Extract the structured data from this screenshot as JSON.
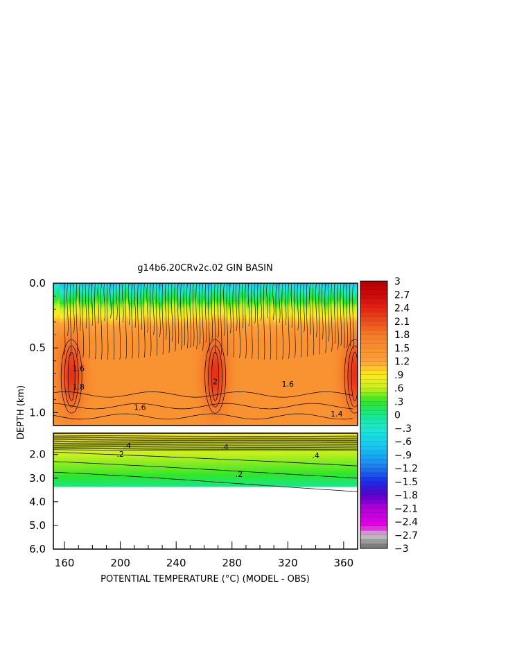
{
  "chart_data": {
    "type": "heatmap",
    "title": "g14b6.20CRv2c.02 GIN BASIN",
    "xlabel": "POTENTIAL TEMPERATURE (°C) (MODEL - OBS)",
    "ylabel": "DEPTH (km)",
    "xlim": [
      152,
      370
    ],
    "x_ticks": [
      "160",
      "200",
      "240",
      "280",
      "320",
      "360"
    ],
    "upper_panel": {
      "ylim": [
        0.0,
        1.1
      ],
      "y_ticks": [
        "0.0",
        "0.5",
        "1.0"
      ]
    },
    "lower_panel": {
      "ylim": [
        1.1,
        6.0
      ],
      "y_ticks": [
        "2.0",
        "3.0",
        "4.0",
        "5.0",
        "6.0"
      ],
      "data_bottom_depth": 3.35
    },
    "colorbar": {
      "min": -3,
      "max": 3,
      "labels": [
        "3",
        "2.7",
        "2.4",
        "2.1",
        "1.8",
        "1.5",
        "1.2",
        ".9",
        ".6",
        ".3",
        "0",
        "-.3",
        "-.6",
        "-.9",
        "-1.2",
        "-1.5",
        "-1.8",
        "-2.1",
        "-2.4",
        "-2.7",
        "-3"
      ],
      "stops": [
        {
          "v": -3.0,
          "c": "#6e6e6e"
        },
        {
          "v": -2.7,
          "c": "#c8c8c8"
        },
        {
          "v": -2.5,
          "c": "#e600e6"
        },
        {
          "v": -2.1,
          "c": "#b000d8"
        },
        {
          "v": -1.8,
          "c": "#5a00c8"
        },
        {
          "v": -1.5,
          "c": "#1a2ee6"
        },
        {
          "v": -1.1,
          "c": "#1e8cf0"
        },
        {
          "v": -0.7,
          "c": "#16c8f0"
        },
        {
          "v": -0.3,
          "c": "#1ee8d2"
        },
        {
          "v": 0.0,
          "c": "#19e68c"
        },
        {
          "v": 0.3,
          "c": "#2ee628"
        },
        {
          "v": 0.6,
          "c": "#c8f01e"
        },
        {
          "v": 0.9,
          "c": "#ffea1e"
        },
        {
          "v": 1.2,
          "c": "#fca03a"
        },
        {
          "v": 1.5,
          "c": "#f89030"
        },
        {
          "v": 1.8,
          "c": "#f47a28"
        },
        {
          "v": 2.1,
          "c": "#ec4e1c"
        },
        {
          "v": 2.4,
          "c": "#e02414"
        },
        {
          "v": 2.7,
          "c": "#cc0a0a"
        },
        {
          "v": 3.0,
          "c": "#b40000"
        }
      ]
    },
    "contour_labels_upper": [
      "1.6",
      "1.8",
      "1.6",
      "1.6",
      "1.4",
      "2"
    ],
    "contour_labels_lower": [
      ".4",
      ".2",
      ".4",
      ".4",
      ".2"
    ],
    "features": {
      "upper_hotspots_x": [
        165,
        268,
        368
      ],
      "upper_hotspot_value": 2.2,
      "upper_background_value": 1.45,
      "surface_value": -0.6
    }
  }
}
